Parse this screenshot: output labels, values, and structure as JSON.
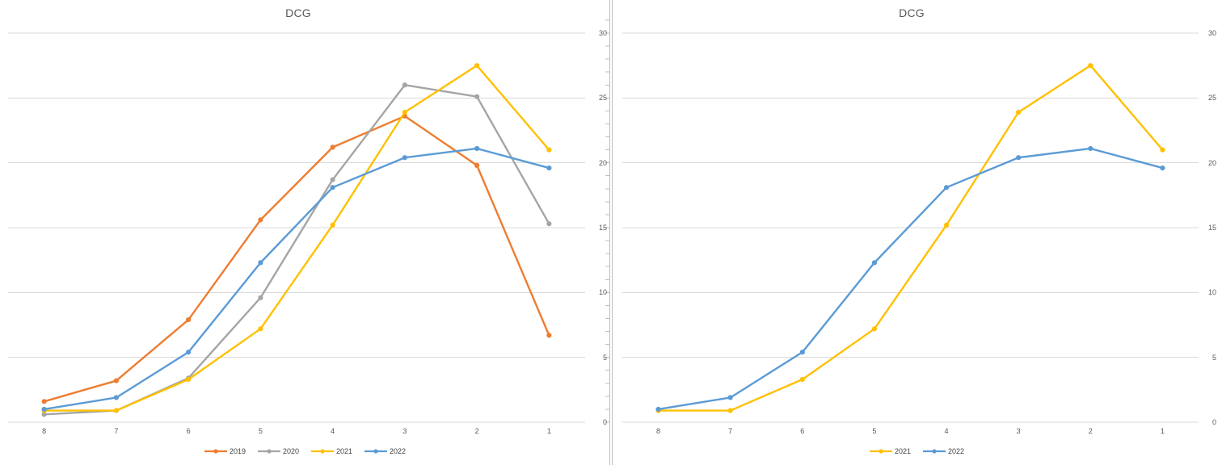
{
  "styles": {
    "background": "#FFFFFF",
    "grid_color": "#D9D9D9",
    "axis_line_color": "#BFBFBF",
    "text_color": "#595959",
    "legend_text_color": "#404040"
  },
  "chart_data": [
    {
      "type": "line",
      "title": "DCG",
      "categories": [
        "8",
        "7",
        "6",
        "5",
        "4",
        "3",
        "2",
        "1"
      ],
      "y_axis": {
        "min": 0,
        "max": 30,
        "step": 5,
        "tick_labels": [
          "0",
          "5",
          "10",
          "15",
          "20",
          "25",
          "30"
        ],
        "labels_side": "right"
      },
      "grid": true,
      "legend_position": "bottom",
      "series": [
        {
          "name": "2019",
          "color": "#ED7D31",
          "values": [
            1.6,
            3.2,
            7.9,
            15.6,
            21.2,
            23.6,
            19.8,
            6.7
          ]
        },
        {
          "name": "2020",
          "color": "#A5A5A5",
          "values": [
            0.6,
            0.9,
            3.4,
            9.6,
            18.7,
            26.0,
            25.1,
            15.3
          ]
        },
        {
          "name": "2021",
          "color": "#FFC000",
          "values": [
            0.9,
            0.9,
            3.3,
            7.2,
            15.2,
            23.9,
            27.5,
            21.0
          ]
        },
        {
          "name": "2022",
          "color": "#5B9BD5",
          "values": [
            1.0,
            1.9,
            5.4,
            12.3,
            18.1,
            20.4,
            21.1,
            19.6
          ]
        }
      ]
    },
    {
      "type": "line",
      "title": "DCG",
      "categories": [
        "8",
        "7",
        "6",
        "5",
        "4",
        "3",
        "2",
        "1"
      ],
      "y_axis": {
        "min": 0,
        "max": 30,
        "step": 5,
        "tick_labels": [
          "0",
          "5",
          "10",
          "15",
          "20",
          "25",
          "30"
        ],
        "labels_side": "right"
      },
      "grid": true,
      "legend_position": "bottom",
      "series": [
        {
          "name": "2021",
          "color": "#FFC000",
          "values": [
            0.9,
            0.9,
            3.3,
            7.2,
            15.2,
            23.9,
            27.5,
            21.0
          ]
        },
        {
          "name": "2022",
          "color": "#5B9BD5",
          "values": [
            1.0,
            1.9,
            5.4,
            12.3,
            18.1,
            20.4,
            21.1,
            19.6
          ]
        }
      ]
    }
  ]
}
